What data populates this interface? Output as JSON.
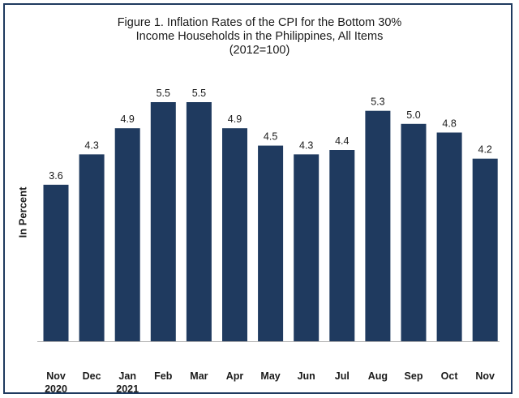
{
  "chart_data": {
    "type": "bar",
    "title_lines": [
      "Figure 1. Inflation Rates of the CPI for the Bottom 30%",
      "Income Households in the Philippines, All Items",
      "(2012=100)"
    ],
    "xlabel": "",
    "ylabel": "In Percent",
    "categories": [
      [
        "Nov",
        "2020"
      ],
      [
        "Dec"
      ],
      [
        "Jan",
        "2021"
      ],
      [
        "Feb"
      ],
      [
        "Mar"
      ],
      [
        "Apr"
      ],
      [
        "May"
      ],
      [
        "Jun"
      ],
      [
        "Jul"
      ],
      [
        "Aug"
      ],
      [
        "Sep"
      ],
      [
        "Oct"
      ],
      [
        "Nov"
      ]
    ],
    "values": [
      3.6,
      4.3,
      4.9,
      5.5,
      5.5,
      4.9,
      4.5,
      4.3,
      4.4,
      5.3,
      5.0,
      4.8,
      4.2
    ],
    "value_labels": [
      "3.6",
      "4.3",
      "4.9",
      "5.5",
      "5.5",
      "4.9",
      "4.5",
      "4.3",
      "4.4",
      "5.3",
      "5.0",
      "4.8",
      "4.2"
    ],
    "ylim": [
      0,
      5.5
    ],
    "grid": false,
    "bar_color": "#1f3a5f",
    "frame_color": "#1f3a5f"
  }
}
